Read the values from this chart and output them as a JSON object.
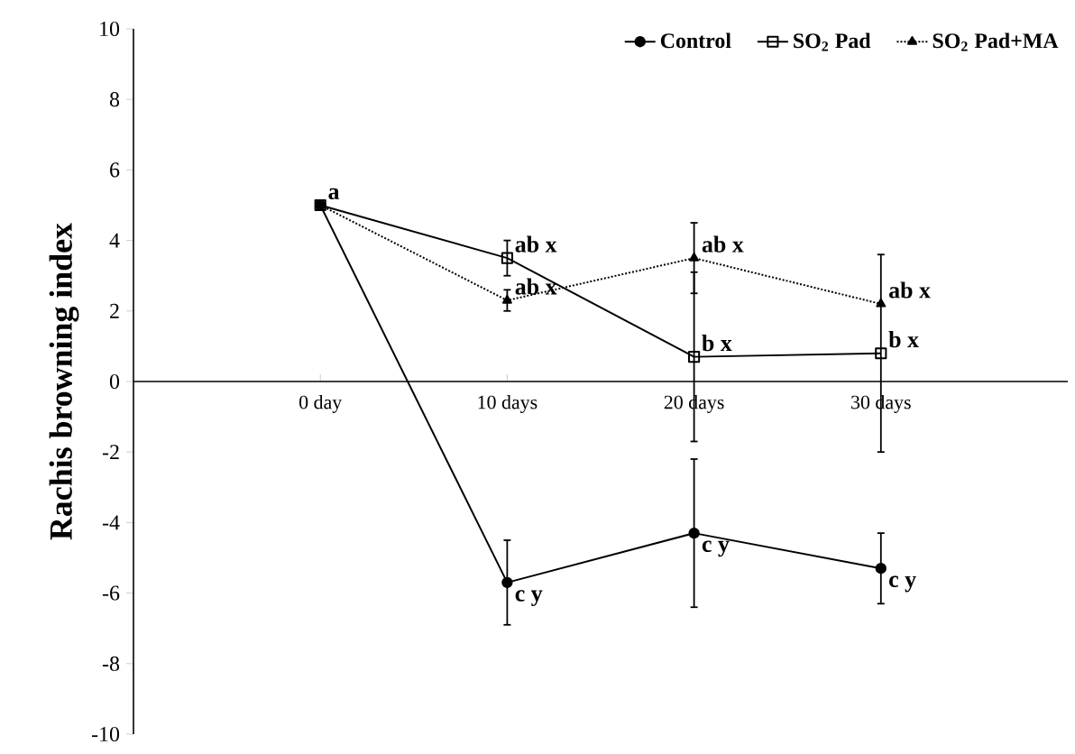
{
  "chart_data": {
    "type": "line",
    "ylabel": "Rachis browning index",
    "categories": [
      "0 day",
      "10 days",
      "20 days",
      "30 days"
    ],
    "series": [
      {
        "name": "Control",
        "color": "#000000",
        "marker": "circle",
        "line_style": "solid",
        "values": [
          5,
          -5.7,
          -4.3,
          -5.3
        ],
        "errors": [
          null,
          1.2,
          2.1,
          1.0
        ],
        "value_labels": [
          "a",
          "c y",
          "c y",
          "c y"
        ]
      },
      {
        "name": "SO$_{2}$ Pad",
        "color": "#000000",
        "marker": "square",
        "line_style": "solid",
        "values": [
          5,
          3.5,
          0.7,
          0.8
        ],
        "errors": [
          null,
          0.5,
          2.4,
          2.8
        ],
        "value_labels": [
          null,
          "ab x",
          "b x",
          "b x"
        ]
      },
      {
        "name": "SO$_{2}$ Pad+MA",
        "color": "#000000",
        "marker": "triangle",
        "line_style": "dotted",
        "values": [
          5,
          2.3,
          3.5,
          2.2
        ],
        "errors": [
          null,
          0.3,
          1.0,
          null
        ],
        "value_labels": [
          null,
          "ab x",
          "ab x",
          "ab x"
        ]
      }
    ],
    "ylim": [
      -10,
      10
    ],
    "yticks": [
      -10,
      -8,
      -6,
      -4,
      -2,
      0,
      2,
      4,
      6,
      8,
      10
    ],
    "legend": "top right",
    "grid": false
  }
}
